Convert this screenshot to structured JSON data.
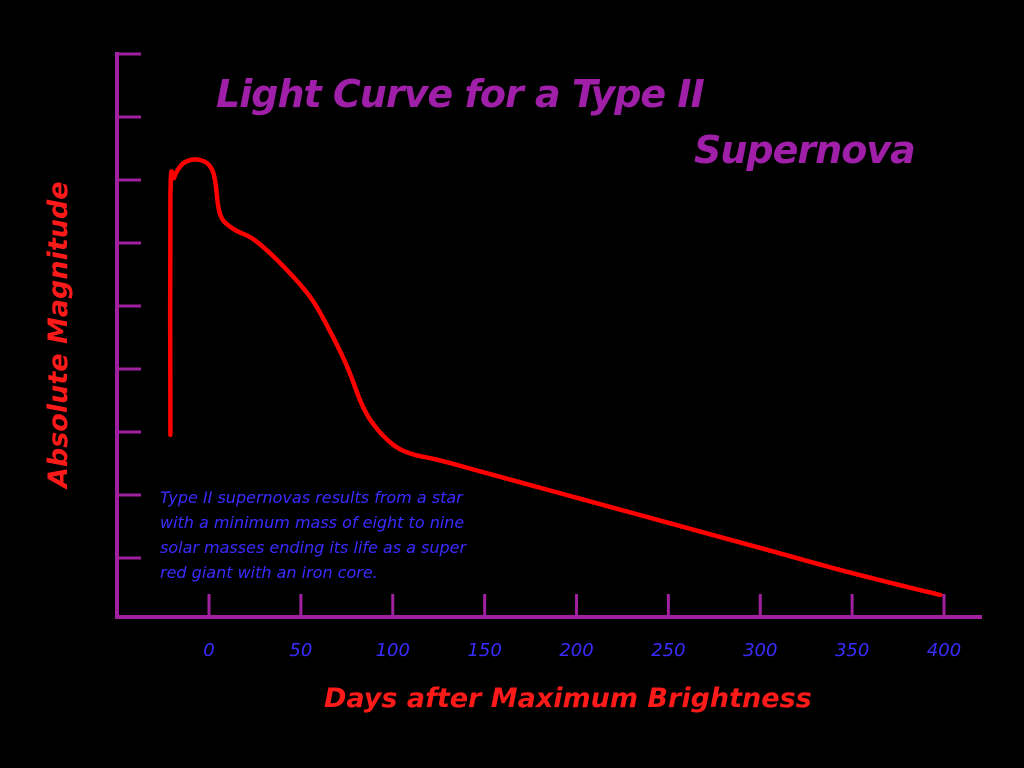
{
  "chart_data": {
    "type": "line",
    "title_lines": [
      "Light Curve for a Type II",
      "Supernova"
    ],
    "xlabel": "Days after Maximum Brightness",
    "ylabel": "Absolute Magnitude",
    "x_ticks": [
      0,
      50,
      100,
      150,
      200,
      250,
      300,
      350,
      400
    ],
    "x_tick_labels": [
      "0",
      "50",
      "100",
      "150",
      "200",
      "250",
      "300",
      "350",
      "400"
    ],
    "xlim": [
      -50,
      420
    ],
    "y_tick_count": 9,
    "ylim": [
      0,
      9
    ],
    "grid": false,
    "note_lines": [
      "Type II supernovas results from a star",
      "with a minimum mass of eight to nine",
      "solar masses ending its life as a super",
      "red giant with an iron core."
    ],
    "series": [
      {
        "x": [
          -21,
          -21,
          -19,
          -15,
          -10,
          -5,
          0,
          3,
          5,
          7,
          10,
          15,
          25,
          40,
          55,
          65,
          75,
          83,
          90,
          100,
          110,
          125,
          150,
          200,
          250,
          300,
          350,
          398
        ],
        "y": [
          2.9,
          6.7,
          7.0,
          7.2,
          7.28,
          7.28,
          7.2,
          7.0,
          6.55,
          6.35,
          6.25,
          6.15,
          6.0,
          5.6,
          5.1,
          4.6,
          4.0,
          3.4,
          3.05,
          2.75,
          2.6,
          2.5,
          2.3,
          1.9,
          1.5,
          1.1,
          0.7,
          0.35
        ]
      }
    ]
  },
  "colors": {
    "background": "#000000",
    "axis": "#a020a0",
    "title": "#a01fa8",
    "axis_label": "#ff1a1a",
    "tick_label": "#3a2cff",
    "note": "#3a2cff",
    "curve": "#ff0000"
  }
}
